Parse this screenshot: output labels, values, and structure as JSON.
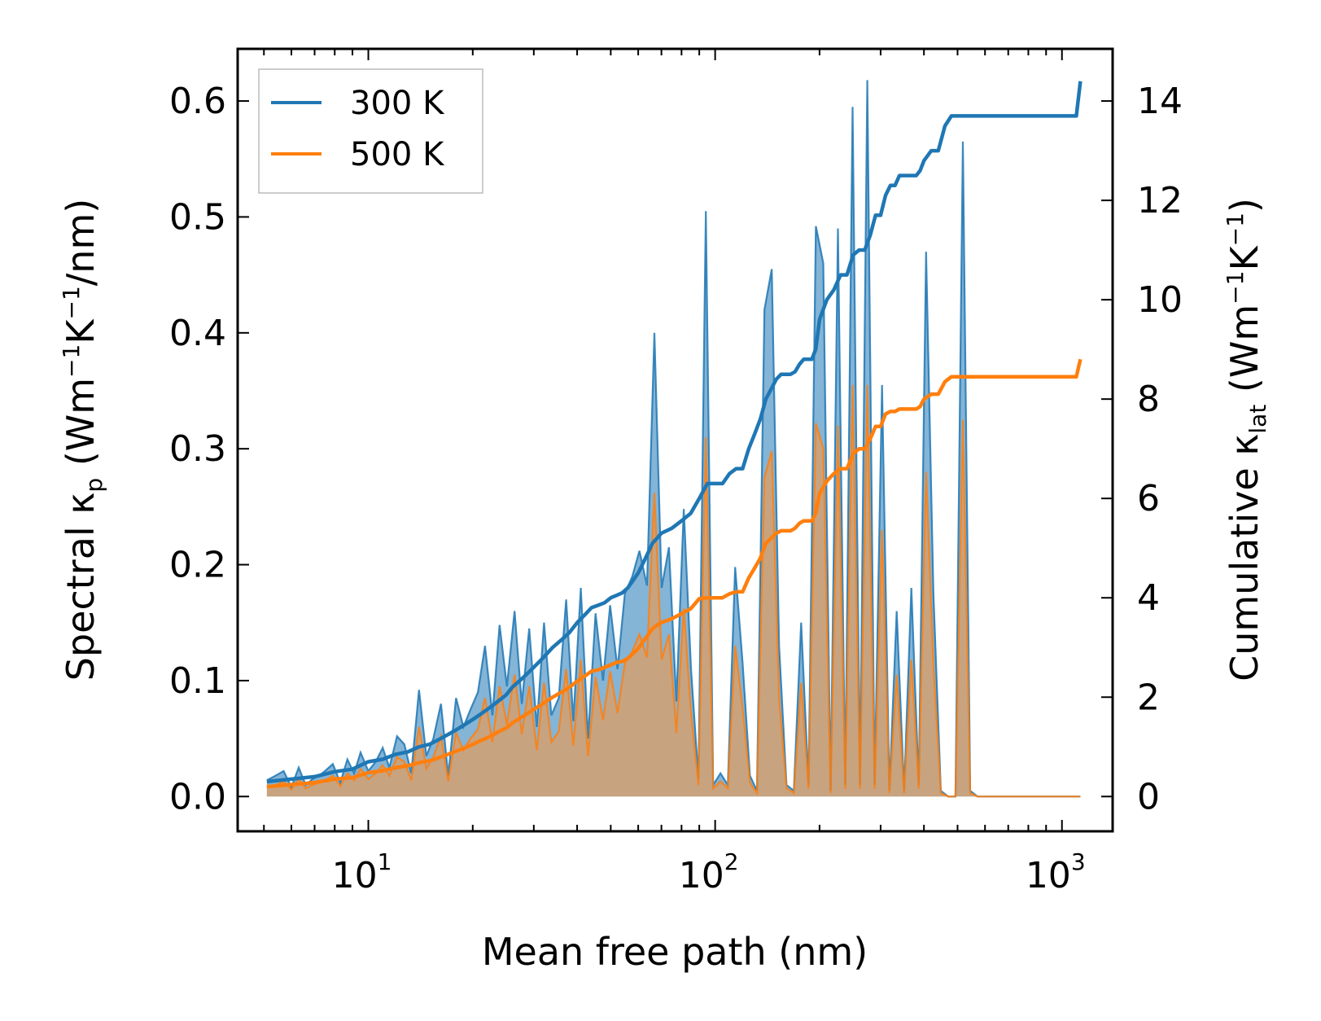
{
  "chart_data": {
    "type": "line",
    "title": "",
    "xlabel": "Mean free path (nm)",
    "xscale": "log",
    "xlim": [
      4.2,
      1400
    ],
    "x_ticks": [
      {
        "value": 10,
        "base": "10",
        "exp": "1"
      },
      {
        "value": 100,
        "base": "10",
        "exp": "2"
      },
      {
        "value": 1000,
        "base": "10",
        "exp": "3"
      }
    ],
    "y_left": {
      "label": {
        "main": "Spectral κ",
        "sub": "p",
        "mid": " (Wm",
        "sup1": "−1",
        "mid2": "K",
        "sup2": "−1",
        "end": "/nm)"
      },
      "lim": [
        -0.03,
        0.645
      ],
      "ticks": [
        "0.0",
        "0.1",
        "0.2",
        "0.3",
        "0.4",
        "0.5",
        "0.6"
      ]
    },
    "y_right": {
      "label": {
        "main": "Cumulative κ",
        "sub": "lat",
        "mid": " (Wm",
        "sup1": "−1",
        "mid2": "K",
        "sup2": "−1",
        "end": ")"
      },
      "lim": [
        -0.7,
        15.05
      ],
      "ticks": [
        "0",
        "2",
        "4",
        "6",
        "8",
        "10",
        "12",
        "14"
      ]
    },
    "legend": {
      "placement": "top-left",
      "entries": [
        "300 K",
        "500 K"
      ]
    },
    "colors": {
      "300 K": "#1f77b4",
      "500 K": "#ff7f0e",
      "fill_300": "#1f77b4",
      "fill_500": "#d4a070"
    },
    "spectral": {
      "300 K": {
        "x": [
          5.1,
          5.4,
          5.7,
          6.0,
          6.3,
          6.6,
          6.9,
          7.2,
          7.5,
          7.9,
          8.3,
          8.7,
          9.1,
          9.5,
          10.0,
          10.5,
          11.0,
          11.5,
          12.1,
          12.7,
          13.3,
          14.0,
          14.7,
          15.4,
          16.2,
          17.0,
          17.9,
          18.8,
          19.7,
          20.7,
          21.7,
          22.8,
          23.9,
          25.1,
          26.4,
          27.7,
          29.1,
          30.6,
          32.1,
          33.7,
          35.4,
          37.2,
          39.0,
          41.0,
          43.0,
          45.2,
          47.5,
          49.8,
          52.3,
          54.9,
          57.7,
          60.5,
          63.6,
          66.8,
          70.1,
          73.6,
          77.3,
          81.2,
          85.2,
          89.5,
          94.0,
          98.7,
          103.6,
          108.8,
          114.2,
          120,
          126,
          132,
          138.7,
          145.6,
          152.9,
          160.6,
          168.6,
          177,
          185.9,
          195.2,
          205,
          215.2,
          226,
          237.3,
          249.1,
          261.6,
          274.7,
          288.4,
          302.8,
          318,
          333.9,
          350.6,
          368,
          386.5,
          405.8,
          426,
          447.4,
          469.7,
          493.2,
          517.9,
          543.8,
          571,
          1090,
          1110,
          1120,
          1130
        ],
        "y": [
          0.014,
          0.018,
          0.022,
          0.008,
          0.025,
          0.01,
          0.015,
          0.018,
          0.022,
          0.028,
          0.012,
          0.032,
          0.02,
          0.038,
          0.022,
          0.03,
          0.042,
          0.025,
          0.052,
          0.045,
          0.02,
          0.092,
          0.035,
          0.05,
          0.08,
          0.018,
          0.085,
          0.06,
          0.075,
          0.09,
          0.13,
          0.07,
          0.148,
          0.095,
          0.16,
          0.08,
          0.145,
          0.06,
          0.15,
          0.07,
          0.085,
          0.17,
          0.065,
          0.18,
          0.05,
          0.158,
          0.1,
          0.165,
          0.11,
          0.175,
          0.19,
          0.212,
          0.182,
          0.4,
          0.18,
          0.215,
          0.082,
          0.248,
          0.11,
          0.015,
          0.505,
          0.01,
          0.02,
          0.01,
          0.198,
          0.115,
          0.018,
          0.005,
          0.42,
          0.455,
          0.13,
          0.01,
          0.005,
          0.15,
          0.01,
          0.492,
          0.46,
          0.005,
          0.49,
          0.01,
          0.595,
          0.01,
          0.618,
          0.01,
          0.355,
          0.005,
          0.16,
          0.005,
          0.18,
          0.01,
          0.47,
          0.175,
          0.005,
          0,
          0,
          0.565,
          0.005,
          0,
          0,
          0,
          0,
          0
        ]
      },
      "500 K": {
        "x": [
          5.1,
          5.4,
          5.7,
          6.0,
          6.3,
          6.6,
          6.9,
          7.2,
          7.5,
          7.9,
          8.3,
          8.7,
          9.1,
          9.5,
          10.0,
          10.5,
          11.0,
          11.5,
          12.1,
          12.7,
          13.3,
          14.0,
          14.7,
          15.4,
          16.2,
          17.0,
          17.9,
          18.8,
          19.7,
          20.7,
          21.7,
          22.8,
          23.9,
          25.1,
          26.4,
          27.7,
          29.1,
          30.6,
          32.1,
          33.7,
          35.4,
          37.2,
          39.0,
          41.0,
          43.0,
          45.2,
          47.5,
          49.8,
          52.3,
          54.9,
          57.7,
          60.5,
          63.6,
          66.8,
          70.1,
          73.6,
          77.3,
          81.2,
          85.2,
          89.5,
          94.0,
          98.7,
          103.6,
          108.8,
          114.2,
          120,
          126,
          132,
          138.7,
          145.6,
          152.9,
          160.6,
          168.6,
          177,
          185.9,
          195.2,
          205,
          215.2,
          226,
          237.3,
          249.1,
          261.6,
          274.7,
          288.4,
          302.8,
          318,
          333.9,
          350.6,
          368,
          386.5,
          405.8,
          426,
          447.4,
          469.7,
          493.2,
          517.9,
          543.8,
          571,
          1090,
          1110,
          1120,
          1130
        ],
        "y": [
          0.008,
          0.01,
          0.013,
          0.006,
          0.015,
          0.007,
          0.01,
          0.012,
          0.014,
          0.018,
          0.009,
          0.02,
          0.014,
          0.024,
          0.015,
          0.02,
          0.027,
          0.018,
          0.034,
          0.03,
          0.014,
          0.06,
          0.024,
          0.034,
          0.052,
          0.013,
          0.055,
          0.04,
          0.05,
          0.058,
          0.085,
          0.047,
          0.095,
          0.062,
          0.105,
          0.054,
          0.095,
          0.04,
          0.098,
          0.047,
          0.056,
          0.11,
          0.044,
          0.118,
          0.035,
          0.103,
          0.066,
          0.108,
          0.072,
          0.115,
          0.125,
          0.14,
          0.12,
          0.262,
          0.118,
          0.14,
          0.055,
          0.162,
          0.072,
          0.01,
          0.31,
          0.007,
          0.013,
          0.007,
          0.13,
          0.076,
          0.012,
          0.003,
          0.275,
          0.298,
          0.085,
          0.007,
          0.003,
          0.098,
          0.007,
          0.322,
          0.3,
          0.003,
          0.32,
          0.007,
          0.355,
          0.007,
          0.355,
          0.007,
          0.23,
          0.003,
          0.105,
          0.003,
          0.118,
          0.007,
          0.28,
          0.114,
          0.003,
          0,
          0,
          0.325,
          0.003,
          0,
          0,
          0,
          0,
          0
        ]
      }
    },
    "cumulative": {
      "300 K": {
        "x": [
          5.1,
          6,
          7,
          8,
          9,
          10,
          11,
          12,
          13,
          14,
          15,
          16,
          17,
          18,
          19,
          20,
          21,
          22,
          23,
          24,
          25,
          26,
          28,
          30,
          32,
          34,
          36,
          38,
          40,
          42,
          44,
          46,
          48,
          50,
          52,
          54,
          56,
          58,
          60,
          62,
          64,
          66,
          68,
          70,
          75,
          80,
          85,
          90,
          95,
          100,
          105,
          110,
          115,
          120,
          125,
          130,
          135,
          140,
          145,
          150,
          155,
          160,
          165,
          170,
          175,
          180,
          185,
          190,
          195,
          200,
          210,
          220,
          230,
          240,
          250,
          260,
          270,
          280,
          290,
          300,
          310,
          320,
          330,
          340,
          350,
          360,
          370,
          380,
          390,
          400,
          420,
          440,
          460,
          480,
          500,
          520,
          540,
          560,
          600,
          700,
          800,
          900,
          1000,
          1100,
          1130
        ],
        "y": [
          0.3,
          0.35,
          0.4,
          0.5,
          0.55,
          0.7,
          0.75,
          0.85,
          0.9,
          1.0,
          1.05,
          1.15,
          1.25,
          1.35,
          1.45,
          1.55,
          1.65,
          1.75,
          1.85,
          1.95,
          2.05,
          2.2,
          2.4,
          2.6,
          2.8,
          3.0,
          3.15,
          3.3,
          3.5,
          3.65,
          3.8,
          3.85,
          3.9,
          4.0,
          4.05,
          4.1,
          4.2,
          4.35,
          4.5,
          4.7,
          4.9,
          5.1,
          5.2,
          5.3,
          5.4,
          5.55,
          5.7,
          6.0,
          6.3,
          6.3,
          6.3,
          6.5,
          6.6,
          6.6,
          7.0,
          7.3,
          7.6,
          8.0,
          8.2,
          8.4,
          8.5,
          8.5,
          8.5,
          8.55,
          8.7,
          8.8,
          8.8,
          8.8,
          9.0,
          9.6,
          10.0,
          10.2,
          10.5,
          10.5,
          10.9,
          11.0,
          11.0,
          11.3,
          11.7,
          11.7,
          12.1,
          12.3,
          12.3,
          12.5,
          12.5,
          12.5,
          12.5,
          12.5,
          12.6,
          12.8,
          13.0,
          13.0,
          13.5,
          13.7,
          13.7,
          13.7,
          13.7,
          13.7,
          13.7,
          13.7,
          13.7,
          13.7,
          13.7,
          13.7,
          14.4
        ]
      },
      "500 K": {
        "x": [
          5.1,
          6,
          7,
          8,
          9,
          10,
          11,
          12,
          13,
          14,
          15,
          16,
          17,
          18,
          19,
          20,
          21,
          22,
          23,
          24,
          25,
          26,
          28,
          30,
          32,
          34,
          36,
          38,
          40,
          42,
          44,
          46,
          48,
          50,
          52,
          54,
          56,
          58,
          60,
          62,
          64,
          66,
          68,
          70,
          75,
          80,
          85,
          90,
          95,
          100,
          105,
          110,
          115,
          120,
          125,
          130,
          135,
          140,
          145,
          150,
          155,
          160,
          165,
          170,
          175,
          180,
          185,
          190,
          195,
          200,
          210,
          220,
          230,
          240,
          250,
          260,
          270,
          280,
          290,
          300,
          310,
          320,
          330,
          340,
          350,
          360,
          370,
          380,
          390,
          400,
          420,
          440,
          460,
          480,
          500,
          520,
          540,
          560,
          600,
          700,
          800,
          900,
          1000,
          1100,
          1130
        ],
        "y": [
          0.2,
          0.24,
          0.28,
          0.35,
          0.38,
          0.48,
          0.52,
          0.58,
          0.62,
          0.68,
          0.72,
          0.78,
          0.85,
          0.92,
          0.98,
          1.05,
          1.12,
          1.18,
          1.25,
          1.32,
          1.38,
          1.48,
          1.62,
          1.75,
          1.88,
          2.0,
          2.1,
          2.2,
          2.32,
          2.42,
          2.52,
          2.55,
          2.6,
          2.65,
          2.7,
          2.72,
          2.78,
          2.88,
          2.98,
          3.12,
          3.25,
          3.38,
          3.45,
          3.5,
          3.58,
          3.68,
          3.78,
          3.98,
          4.0,
          4.0,
          4.0,
          4.08,
          4.12,
          4.12,
          4.4,
          4.6,
          4.8,
          5.1,
          5.2,
          5.3,
          5.35,
          5.35,
          5.35,
          5.4,
          5.5,
          5.55,
          5.55,
          5.55,
          5.7,
          6.1,
          6.35,
          6.5,
          6.6,
          6.6,
          6.9,
          7.0,
          7.0,
          7.2,
          7.45,
          7.45,
          7.7,
          7.75,
          7.75,
          7.8,
          7.8,
          7.8,
          7.8,
          7.8,
          7.85,
          8.0,
          8.1,
          8.1,
          8.35,
          8.45,
          8.45,
          8.45,
          8.45,
          8.45,
          8.45,
          8.45,
          8.45,
          8.45,
          8.45,
          8.45,
          8.8
        ]
      }
    }
  }
}
